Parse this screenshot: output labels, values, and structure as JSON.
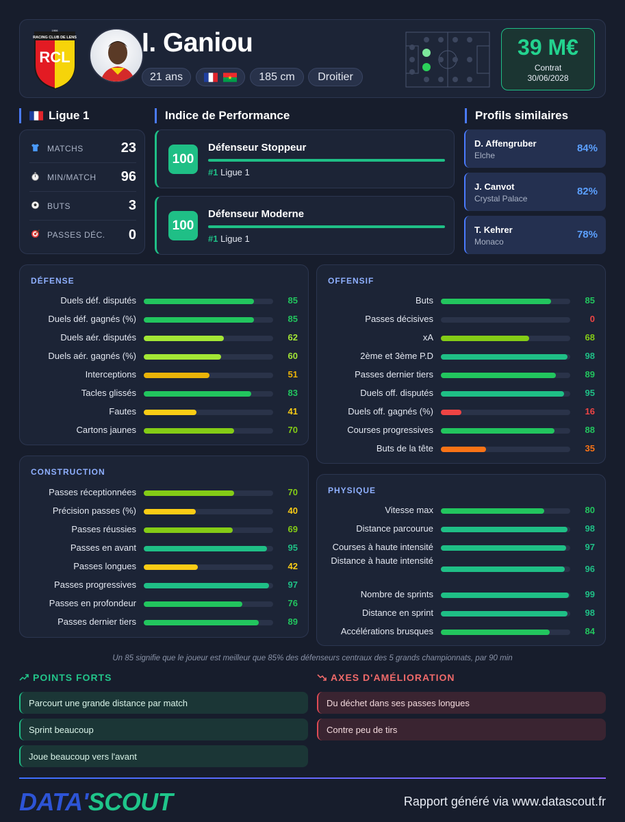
{
  "player": {
    "name": "I. Ganiou",
    "age": "21 ans",
    "height": "185 cm",
    "foot": "Droitier",
    "flags": [
      "france-flag",
      "burkina-faso-flag"
    ],
    "club_logo_text": "RCL",
    "club_logo_top": "RACING CLUB DE LENS",
    "club_logo_year": "1906"
  },
  "value": {
    "amount": "39 M€",
    "contract_label": "Contrat",
    "contract_date": "30/06/2028"
  },
  "league": {
    "title": "Ligue 1",
    "icon": "france-flag"
  },
  "basic_stats": [
    {
      "icon": "shirt-icon",
      "label": "MATCHS",
      "value": "23"
    },
    {
      "icon": "stopwatch-icon",
      "label": "MIN/MATCH",
      "value": "96"
    },
    {
      "icon": "ball-icon",
      "label": "BUTS",
      "value": "3"
    },
    {
      "icon": "target-icon",
      "label": "PASSES DÉC.",
      "value": "0"
    }
  ],
  "performance": {
    "title": "Indice de Performance",
    "items": [
      {
        "score": "100",
        "name": "Défenseur Stoppeur",
        "rank": "#1",
        "league": "Ligue 1",
        "fill": 1.0
      },
      {
        "score": "100",
        "name": "Défenseur Moderne",
        "rank": "#1",
        "league": "Ligue 1",
        "fill": 1.0
      }
    ]
  },
  "similar": {
    "title": "Profils similaires",
    "items": [
      {
        "name": "D. Affengruber",
        "club": "Elche",
        "pct": "84%"
      },
      {
        "name": "J. Canvot",
        "club": "Crystal Palace",
        "pct": "82%"
      },
      {
        "name": "T. Kehrer",
        "club": "Monaco",
        "pct": "78%"
      }
    ]
  },
  "colors": {
    "high": "#1fbf86",
    "good": "#22c55e",
    "mid_good": "#84cc16",
    "mid_high": "#a3e635",
    "mid": "#facc15",
    "amber": "#eab308",
    "low": "#f97316",
    "bad": "#ef4444"
  },
  "panels": {
    "defense": {
      "title": "DÉFENSE",
      "metrics": [
        {
          "label": "Duels déf. disputés",
          "value": 85
        },
        {
          "label": "Duels déf. gagnés (%)",
          "value": 85
        },
        {
          "label": "Duels aér. disputés",
          "value": 62
        },
        {
          "label": "Duels aér. gagnés (%)",
          "value": 60
        },
        {
          "label": "Interceptions",
          "value": 51
        },
        {
          "label": "Tacles glissés",
          "value": 83
        },
        {
          "label": "Fautes",
          "value": 41
        },
        {
          "label": "Cartons jaunes",
          "value": 70
        }
      ]
    },
    "offensive": {
      "title": "OFFENSIF",
      "metrics": [
        {
          "label": "Buts",
          "value": 85
        },
        {
          "label": "Passes décisives",
          "value": 0
        },
        {
          "label": "xA",
          "value": 68
        },
        {
          "label": "2ème et 3ème P.D",
          "value": 98
        },
        {
          "label": "Passes dernier tiers",
          "value": 89
        },
        {
          "label": "Duels off. disputés",
          "value": 95
        },
        {
          "label": "Duels off. gagnés (%)",
          "value": 16
        },
        {
          "label": "Courses progressives",
          "value": 88
        },
        {
          "label": "Buts de la tête",
          "value": 35
        }
      ]
    },
    "construction": {
      "title": "CONSTRUCTION",
      "metrics": [
        {
          "label": "Passes réceptionnées",
          "value": 70
        },
        {
          "label": "Précision passes (%)",
          "value": 40
        },
        {
          "label": "Passes réussies",
          "value": 69
        },
        {
          "label": "Passes en avant",
          "value": 95
        },
        {
          "label": "Passes longues",
          "value": 42
        },
        {
          "label": "Passes progressives",
          "value": 97
        },
        {
          "label": "Passes en profondeur",
          "value": 76
        },
        {
          "label": "Passes dernier tiers",
          "value": 89
        }
      ]
    },
    "physique": {
      "title": "PHYSIQUE",
      "metrics": [
        {
          "label": "Vitesse max",
          "value": 80
        },
        {
          "label": "Distance parcourue",
          "value": 98
        },
        {
          "label": "Courses à haute intensité",
          "value": 97
        },
        {
          "label": "Distance à haute intensité",
          "value": 96
        },
        {
          "label": "Nombre de sprints",
          "value": 99
        },
        {
          "label": "Distance en sprint",
          "value": 98
        },
        {
          "label": "Accélérations brusques",
          "value": 84
        }
      ]
    }
  },
  "footnote": "Un 85 signifie que le joueur est meilleur que 85% des défenseurs centraux des 5 grands championnats, par 90 min",
  "strengths": {
    "title": "POINTS FORTS",
    "icon": "trend-up-icon",
    "items": [
      "Parcourt une grande distance par match",
      "Sprint beaucoup",
      "Joue beaucoup vers l'avant"
    ]
  },
  "weaknesses": {
    "title": "AXES D'AMÉLIORATION",
    "icon": "trend-down-icon",
    "items": [
      "Du déchet dans ses passes longues",
      "Contre peu de tirs"
    ]
  },
  "footer": {
    "brand_part1": "DATA'",
    "brand_part2": "SCOUT",
    "report": "Rapport généré via www.datascout.fr"
  }
}
